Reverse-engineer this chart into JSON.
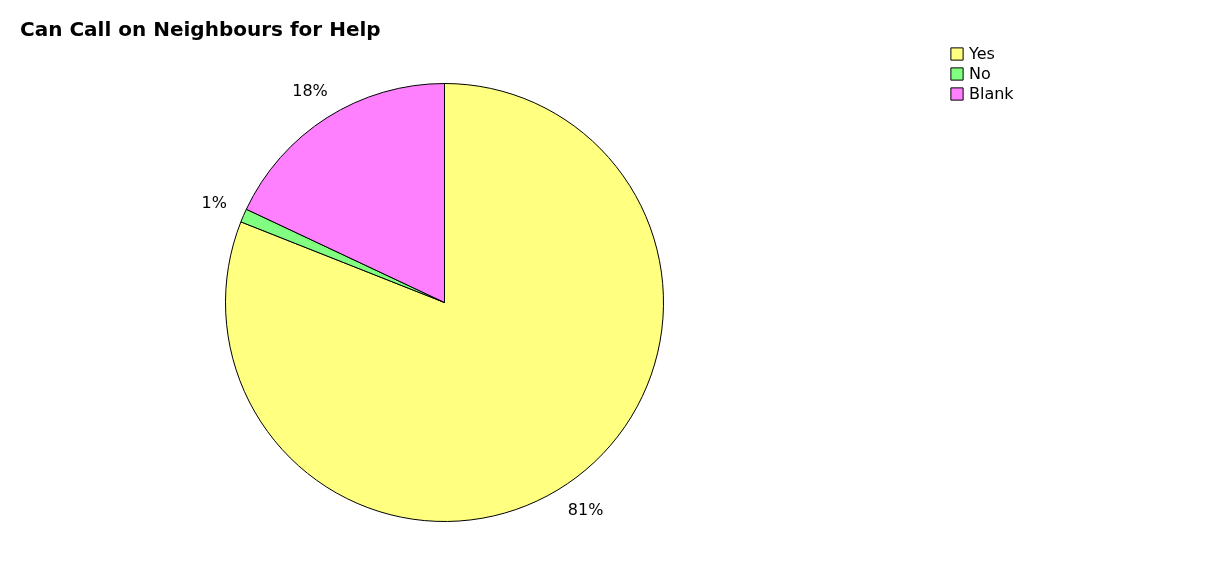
{
  "chart_data": {
    "type": "pie",
    "title": "Can Call on Neighbours for Help",
    "categories": [
      "Yes",
      "No",
      "Blank"
    ],
    "values": [
      81,
      1,
      18
    ],
    "colors": [
      "#ffff80",
      "#80ff80",
      "#ff80ff"
    ],
    "value_labels": [
      "81%",
      "1%",
      "18%"
    ],
    "legend": "right"
  }
}
